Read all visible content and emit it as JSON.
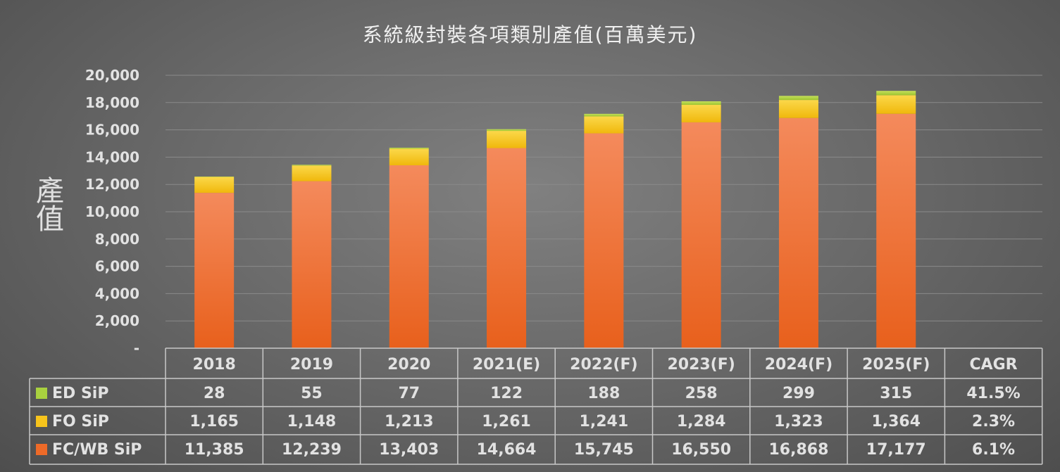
{
  "chart_data": {
    "type": "bar",
    "stacked": true,
    "title": "系統級封裝各項類別產值(百萬美元)",
    "ylabel": "產值",
    "xlabel": "",
    "ylim": [
      0,
      20000
    ],
    "yticks": [
      "-",
      "2,000",
      "4,000",
      "6,000",
      "8,000",
      "10,000",
      "12,000",
      "14,000",
      "16,000",
      "18,000",
      "20,000"
    ],
    "grid": true,
    "categories": [
      "2018",
      "2019",
      "2020",
      "2021(E)",
      "2022(F)",
      "2023(F)",
      "2024(F)",
      "2025(F)"
    ],
    "extra_column": "CAGR",
    "series": [
      {
        "name": "ED SiP",
        "color": "#a9d13f",
        "values": [
          28,
          55,
          77,
          122,
          188,
          258,
          299,
          315
        ],
        "labels": [
          "28",
          "55",
          "77",
          "122",
          "188",
          "258",
          "299",
          "315"
        ],
        "cagr": "41.5%"
      },
      {
        "name": "FO SiP",
        "color": "#f7c41c",
        "values": [
          1165,
          1148,
          1213,
          1261,
          1241,
          1284,
          1323,
          1364
        ],
        "labels": [
          "1,165",
          "1,148",
          "1,213",
          "1,261",
          "1,241",
          "1,284",
          "1,323",
          "1,364"
        ],
        "cagr": "2.3%"
      },
      {
        "name": "FC/WB SiP",
        "color": "#ee6a28",
        "values": [
          11385,
          12239,
          13403,
          14664,
          15745,
          16550,
          16868,
          17177
        ],
        "labels": [
          "11,385",
          "12,239",
          "13,403",
          "14,664",
          "15,745",
          "16,550",
          "16,868",
          "17,177"
        ],
        "cagr": "6.1%"
      }
    ],
    "legend": "data-table"
  }
}
